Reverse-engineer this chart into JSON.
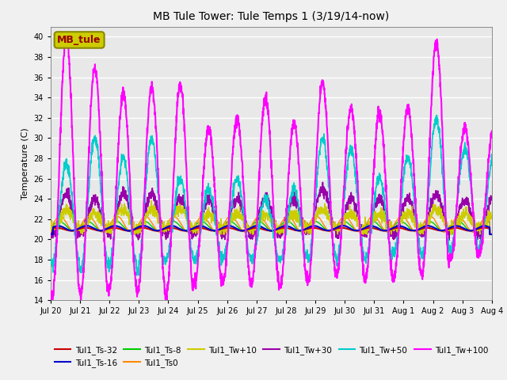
{
  "title": "MB Tule Tower: Tule Temps 1 (3/19/14-now)",
  "ylabel": "Temperature (C)",
  "ylim": [
    14,
    41
  ],
  "yticks": [
    14,
    16,
    18,
    20,
    22,
    24,
    26,
    28,
    30,
    32,
    34,
    36,
    38,
    40
  ],
  "xlabel_dates": [
    "Jul 20",
    "Jul 21",
    "Jul 22",
    "Jul 23",
    "Jul 24",
    "Jul 25",
    "Jul 26",
    "Jul 27",
    "Jul 28",
    "Jul 29",
    "Jul 30",
    "Jul 31",
    "Aug 1",
    "Aug 2",
    "Aug 3",
    "Aug 4"
  ],
  "series": [
    {
      "label": "Tul1_Ts-32",
      "color": "#cc0000",
      "lw": 1.5,
      "zorder": 5
    },
    {
      "label": "Tul1_Ts-16",
      "color": "#0000cc",
      "lw": 1.5,
      "zorder": 5
    },
    {
      "label": "Tul1_Ts-8",
      "color": "#00cc00",
      "lw": 1.0,
      "zorder": 4
    },
    {
      "label": "Tul1_Ts0",
      "color": "#ff8800",
      "lw": 1.0,
      "zorder": 4
    },
    {
      "label": "Tul1_Tw+10",
      "color": "#cccc00",
      "lw": 1.0,
      "zorder": 4
    },
    {
      "label": "Tul1_Tw+30",
      "color": "#9900aa",
      "lw": 1.2,
      "zorder": 3
    },
    {
      "label": "Tul1_Tw+50",
      "color": "#00cccc",
      "lw": 1.2,
      "zorder": 6
    },
    {
      "label": "Tul1_Tw+100",
      "color": "#ff00ff",
      "lw": 1.5,
      "zorder": 7
    }
  ],
  "legend_box_label": "MB_tule",
  "n_days": 15.5,
  "pts_per_day": 144,
  "figsize": [
    6.4,
    4.8
  ],
  "dpi": 100
}
